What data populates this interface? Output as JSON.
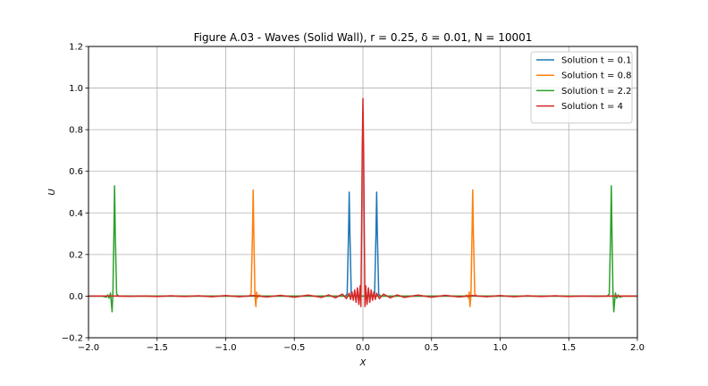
{
  "chart_data": {
    "type": "line",
    "title": "Figure A.03 - Waves (Solid Wall), r = 0.25, δ = 0.01, N = 10001",
    "xlabel": "X",
    "ylabel": "U",
    "xlim": [
      -2.0,
      2.0
    ],
    "ylim": [
      -0.2,
      1.2
    ],
    "xticks": [
      "−2.0",
      "−1.5",
      "−1.0",
      "−0.5",
      "0.0",
      "0.5",
      "1.0",
      "1.5",
      "2.0"
    ],
    "xtick_values": [
      -2.0,
      -1.5,
      -1.0,
      -0.5,
      0.0,
      0.5,
      1.0,
      1.5,
      2.0
    ],
    "yticks": [
      "−0.2",
      "0.0",
      "0.2",
      "0.4",
      "0.6",
      "0.8",
      "1.0",
      "1.2"
    ],
    "ytick_values": [
      -0.2,
      0.0,
      0.2,
      0.4,
      0.6,
      0.8,
      1.0,
      1.2
    ],
    "grid": true,
    "legend_position": "top-right",
    "series": [
      {
        "name": "Solution t = 0.1",
        "color": "#1f77b4",
        "x": [
          -2.0,
          -0.13,
          -0.115,
          -0.105,
          -0.1,
          -0.095,
          -0.085,
          -0.07,
          0.07,
          0.085,
          0.095,
          0.1,
          0.105,
          0.115,
          0.13,
          2.0
        ],
        "y": [
          0.0,
          0.0,
          0.01,
          0.3,
          0.5,
          0.3,
          0.01,
          0.0,
          0.0,
          0.01,
          0.3,
          0.5,
          0.3,
          0.01,
          0.0,
          0.0
        ]
      },
      {
        "name": "Solution t = 0.8",
        "color": "#ff7f0e",
        "x": [
          -2.0,
          -0.83,
          -0.815,
          -0.805,
          -0.8,
          -0.795,
          -0.787,
          -0.78,
          -0.775,
          -0.77,
          -0.76,
          -0.74,
          0.74,
          0.76,
          0.77,
          0.775,
          0.78,
          0.787,
          0.795,
          0.8,
          0.805,
          0.815,
          0.83,
          2.0
        ],
        "y": [
          0.0,
          0.0,
          0.01,
          0.3,
          0.51,
          0.3,
          0.0,
          -0.05,
          0.02,
          -0.01,
          0.005,
          0.0,
          0.0,
          0.005,
          -0.01,
          0.02,
          -0.05,
          0.0,
          0.3,
          0.51,
          0.3,
          0.01,
          0.0,
          0.0
        ]
      },
      {
        "name": "Solution t = 2.2",
        "color": "#2ca02c",
        "x": [
          -2.0,
          -1.9,
          -1.87,
          -1.86,
          -1.85,
          -1.84,
          -1.835,
          -1.828,
          -1.822,
          -1.815,
          -1.81,
          -1.805,
          -1.795,
          -1.78,
          -1.76,
          1.76,
          1.78,
          1.795,
          1.805,
          1.81,
          1.815,
          1.822,
          1.828,
          1.835,
          1.84,
          1.85,
          1.86,
          1.87,
          1.9,
          2.0
        ],
        "y": [
          0.0,
          0.0,
          -0.005,
          0.006,
          -0.01,
          0.015,
          -0.02,
          -0.075,
          0.02,
          0.3,
          0.53,
          0.3,
          0.01,
          0.0,
          0.0,
          0.0,
          0.0,
          0.01,
          0.3,
          0.53,
          0.3,
          0.02,
          -0.075,
          -0.02,
          0.015,
          -0.01,
          0.006,
          -0.005,
          0.0,
          0.0
        ]
      },
      {
        "name": "Solution t = 4",
        "color": "#d62728",
        "x": [
          -2.0,
          -1.8,
          -1.7,
          -1.6,
          -1.5,
          -1.4,
          -1.3,
          -1.2,
          -1.1,
          -1.0,
          -0.9,
          -0.8,
          -0.7,
          -0.6,
          -0.5,
          -0.4,
          -0.3,
          -0.25,
          -0.2,
          -0.15,
          -0.12,
          -0.1,
          -0.09,
          -0.08,
          -0.07,
          -0.06,
          -0.05,
          -0.04,
          -0.03,
          -0.02,
          -0.015,
          -0.01,
          -0.005,
          0.0,
          0.005,
          0.01,
          0.015,
          0.02,
          0.03,
          0.04,
          0.05,
          0.06,
          0.07,
          0.08,
          0.09,
          0.1,
          0.12,
          0.15,
          0.2,
          0.25,
          0.3,
          0.4,
          0.5,
          0.6,
          0.7,
          0.8,
          0.9,
          1.0,
          1.1,
          1.2,
          1.3,
          1.4,
          1.5,
          1.6,
          1.7,
          1.8,
          2.0
        ],
        "y": [
          0.0,
          0.001,
          -0.001,
          0.001,
          -0.002,
          0.002,
          -0.002,
          0.002,
          -0.003,
          0.003,
          -0.003,
          0.003,
          -0.004,
          0.004,
          -0.005,
          0.005,
          -0.006,
          0.006,
          -0.008,
          0.01,
          -0.012,
          0.014,
          -0.016,
          0.02,
          -0.02,
          0.03,
          -0.03,
          0.04,
          -0.04,
          0.05,
          -0.05,
          0.3,
          0.7,
          0.95,
          0.7,
          0.3,
          -0.05,
          0.05,
          -0.04,
          0.04,
          -0.03,
          0.03,
          -0.02,
          0.02,
          -0.016,
          0.014,
          -0.012,
          0.01,
          -0.008,
          0.006,
          -0.006,
          0.005,
          -0.005,
          0.004,
          -0.004,
          0.003,
          -0.003,
          0.003,
          -0.003,
          0.002,
          -0.002,
          0.002,
          -0.002,
          0.001,
          -0.001,
          0.001,
          0.0
        ]
      }
    ]
  }
}
